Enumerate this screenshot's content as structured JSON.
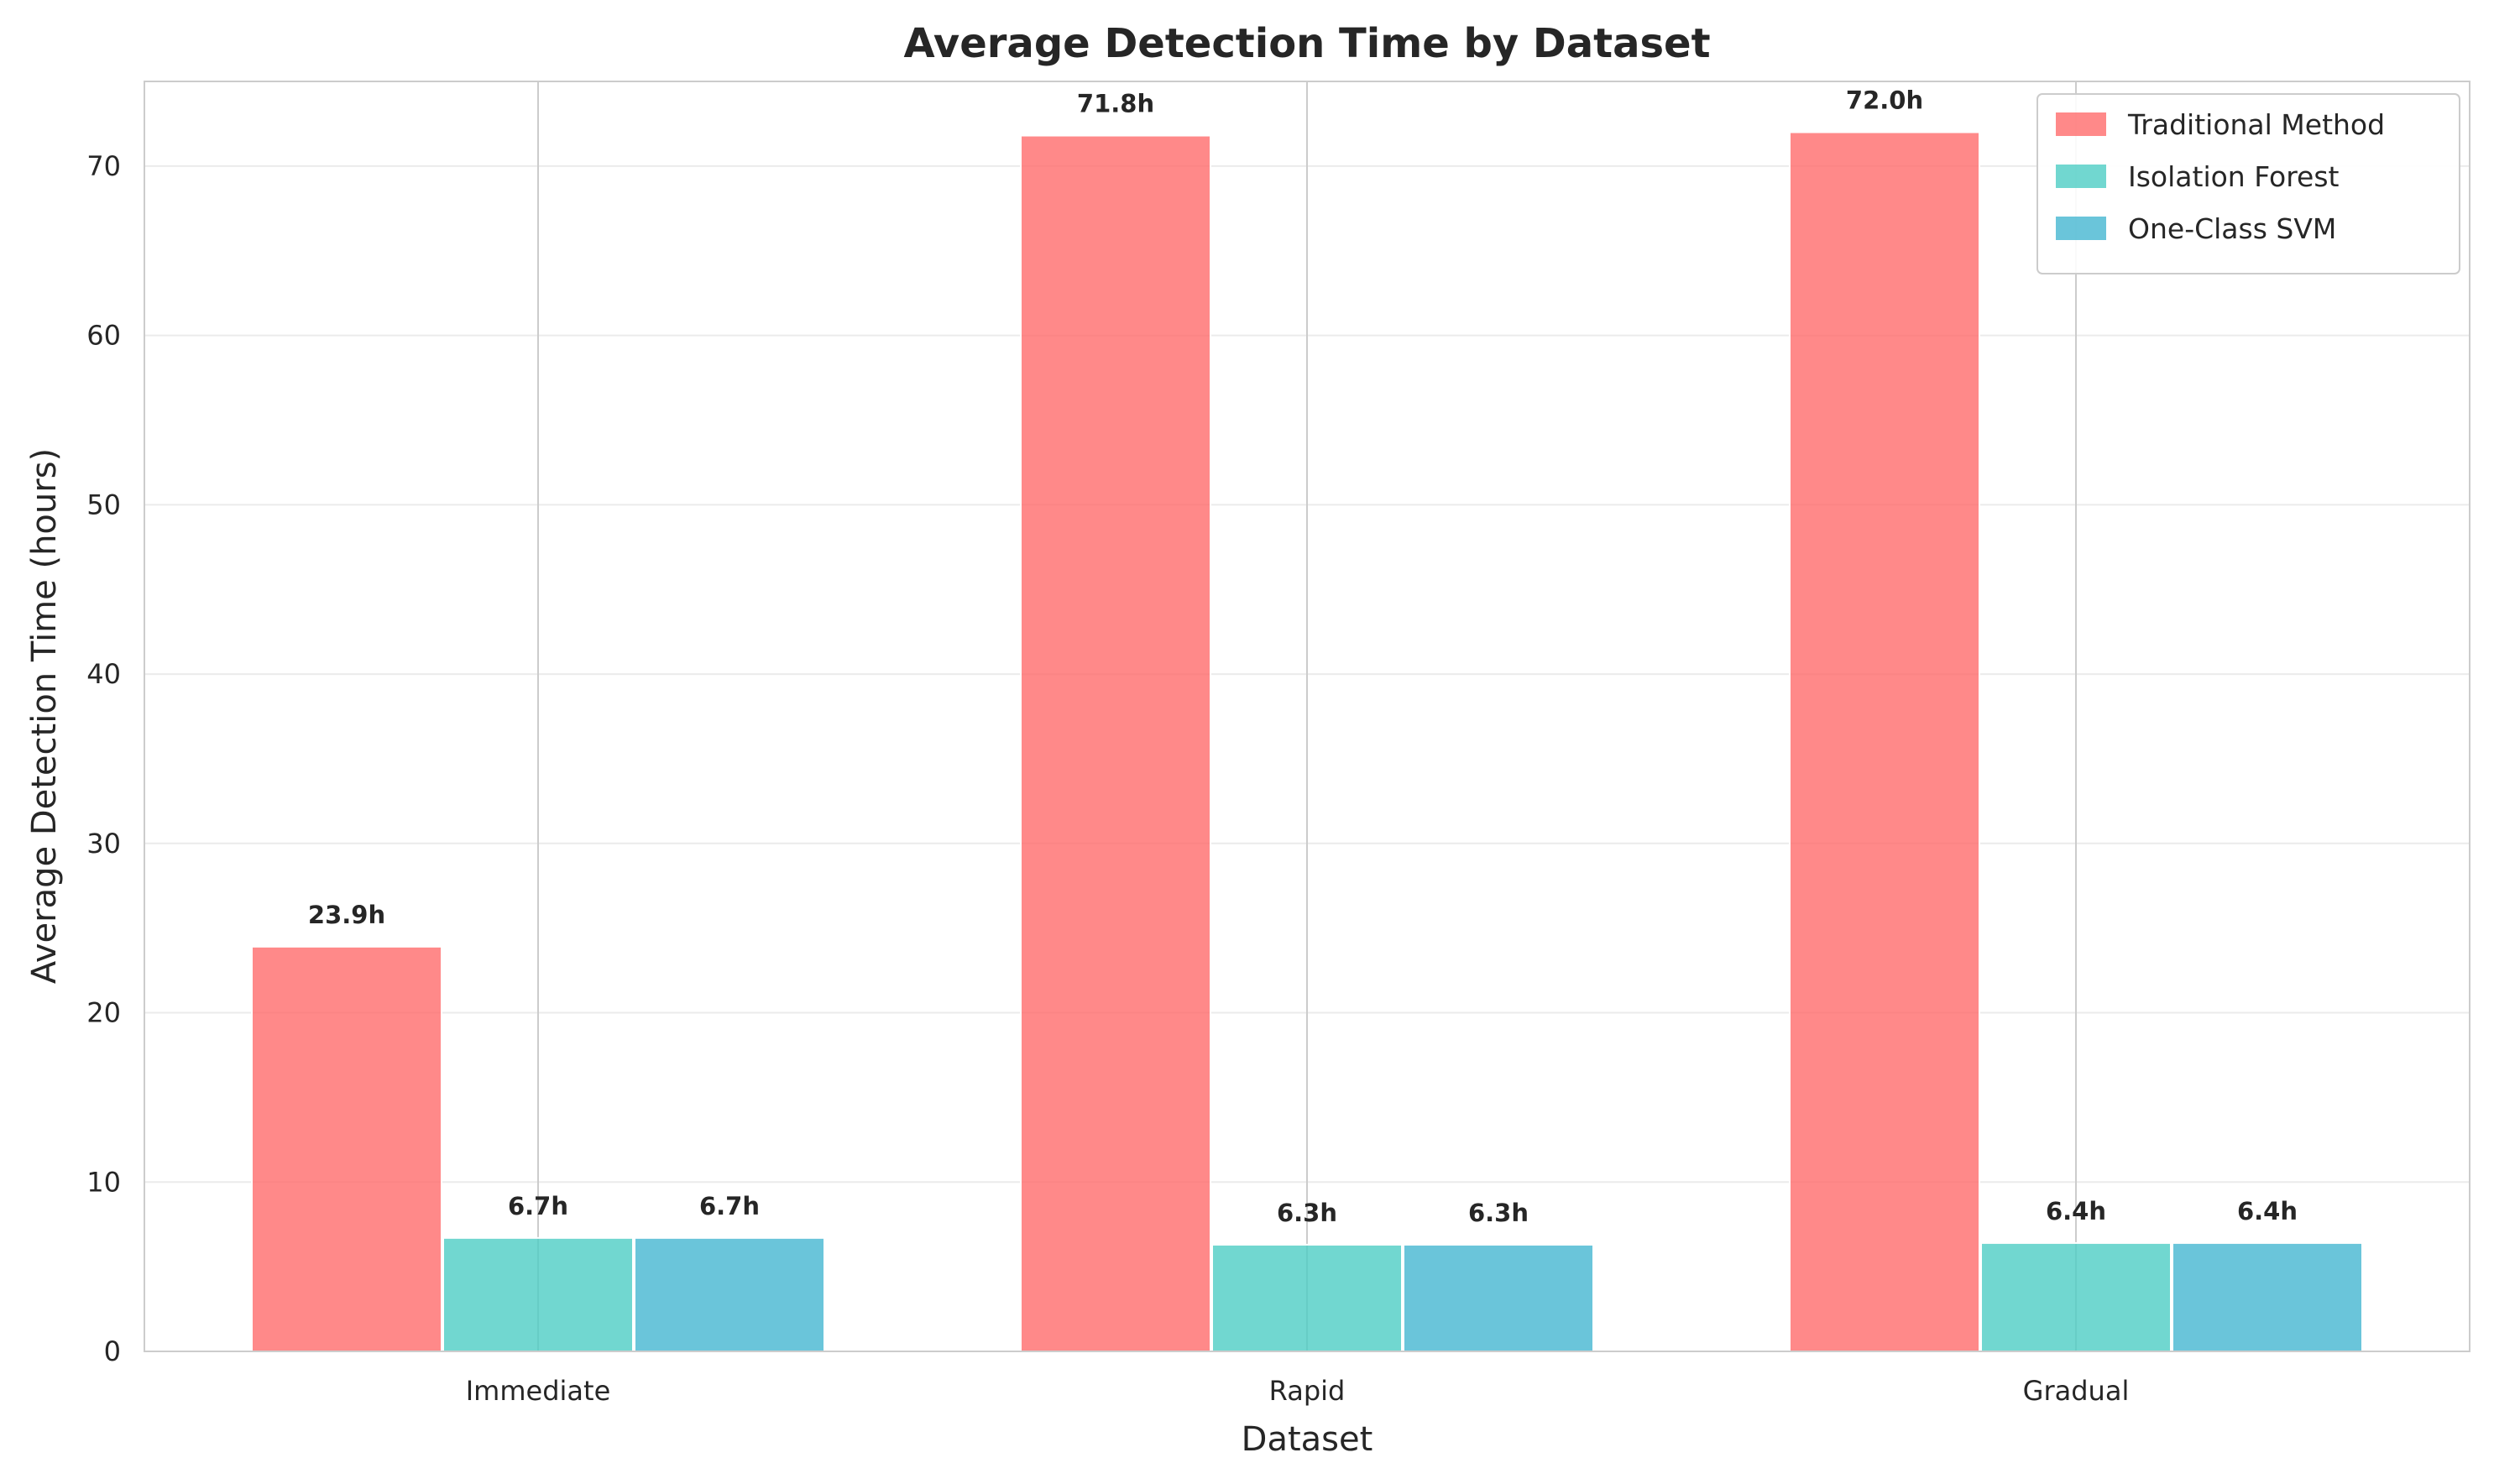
{
  "chart_data": {
    "type": "bar",
    "title": "Average Detection Time by Dataset",
    "xlabel": "Dataset",
    "ylabel": "Average Detection Time (hours)",
    "categories": [
      "Immediate",
      "Rapid",
      "Gradual"
    ],
    "series": [
      {
        "name": "Traditional Method",
        "values": [
          23.9,
          71.8,
          72.0
        ],
        "labels": [
          "23.9h",
          "71.8h",
          "72.0h"
        ],
        "color": "#ff6b6b"
      },
      {
        "name": "Isolation Forest",
        "values": [
          6.7,
          6.3,
          6.4
        ],
        "labels": [
          "6.7h",
          "6.3h",
          "6.4h"
        ],
        "color": "#4ecdc4"
      },
      {
        "name": "One-Class SVM",
        "values": [
          6.7,
          6.3,
          6.4
        ],
        "labels": [
          "6.7h",
          "6.3h",
          "6.4h"
        ],
        "color": "#45b7d1"
      }
    ],
    "ylim": [
      0,
      75
    ],
    "yticks": [
      0,
      10,
      20,
      30,
      40,
      50,
      60,
      70
    ],
    "grid": true,
    "legend_position": "top-right"
  }
}
